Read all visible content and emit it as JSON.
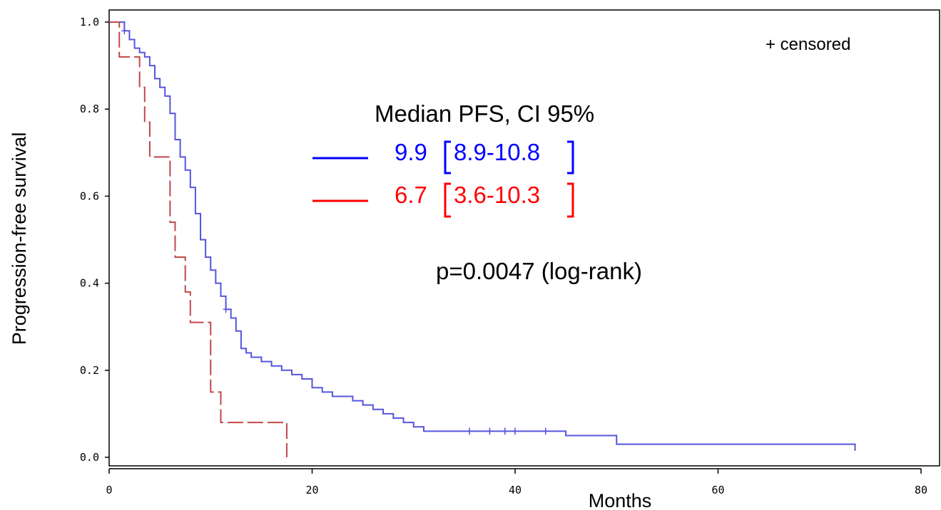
{
  "chart_data": {
    "type": "line",
    "subtype": "kaplan-meier step",
    "xlabel": "Months",
    "ylabel": "Progression-free survival",
    "xlim": [
      0,
      80
    ],
    "ylim": [
      0.0,
      1.0
    ],
    "x_ticks": [
      "0",
      "20",
      "40",
      "60",
      "80"
    ],
    "y_ticks": [
      "0.0",
      "0.2",
      "0.4",
      "0.6",
      "0.8",
      "1.0"
    ],
    "grid": false,
    "censor_legend": "+ censored",
    "annotation_title": "Median PFS, CI 95%",
    "pvalue_text": "p=0.0047 (log-rank)",
    "series": [
      {
        "color": "#5555dd",
        "style": "solid",
        "median_value": "9.9",
        "median_ci": "8.9-10.8",
        "label_color": "#0000ff",
        "x": [
          0,
          1.0,
          1.5,
          2.0,
          2.5,
          3.0,
          3.5,
          4.0,
          4.5,
          5.0,
          5.5,
          6.0,
          6.5,
          7.0,
          7.5,
          8.0,
          8.5,
          9.0,
          9.5,
          10.0,
          10.5,
          11.0,
          11.5,
          12.0,
          12.5,
          13.0,
          13.5,
          14.0,
          15.0,
          16.0,
          17.0,
          18.0,
          19.0,
          20.0,
          21.0,
          22.0,
          23.0,
          24.0,
          25.0,
          26.0,
          27.0,
          28.0,
          29.0,
          30.0,
          31.0,
          32.0,
          45.0,
          50.0,
          73.5
        ],
        "y": [
          1.0,
          1.0,
          0.98,
          0.96,
          0.94,
          0.93,
          0.92,
          0.9,
          0.87,
          0.85,
          0.83,
          0.79,
          0.73,
          0.69,
          0.66,
          0.62,
          0.56,
          0.5,
          0.46,
          0.43,
          0.4,
          0.37,
          0.34,
          0.32,
          0.29,
          0.25,
          0.24,
          0.23,
          0.22,
          0.21,
          0.2,
          0.19,
          0.18,
          0.16,
          0.15,
          0.14,
          0.14,
          0.13,
          0.12,
          0.11,
          0.1,
          0.09,
          0.08,
          0.07,
          0.06,
          0.06,
          0.05,
          0.03,
          0.015
        ],
        "censor_x": [
          1.5,
          11.5,
          35.5,
          37.5,
          39.0,
          40.0,
          43.0
        ]
      },
      {
        "color": "#c0474a",
        "style": "dashed",
        "median_value": "6.7",
        "median_ci": "3.6-10.3",
        "label_color": "#ff0000",
        "x": [
          0,
          1.0,
          3.0,
          3.5,
          4.0,
          6.0,
          6.5,
          7.5,
          8.0,
          10.0,
          11.0,
          17.5,
          17.5
        ],
        "y": [
          1.0,
          0.92,
          0.85,
          0.77,
          0.69,
          0.54,
          0.46,
          0.38,
          0.31,
          0.15,
          0.08,
          0.08,
          0.0
        ],
        "censor_x": []
      }
    ]
  }
}
